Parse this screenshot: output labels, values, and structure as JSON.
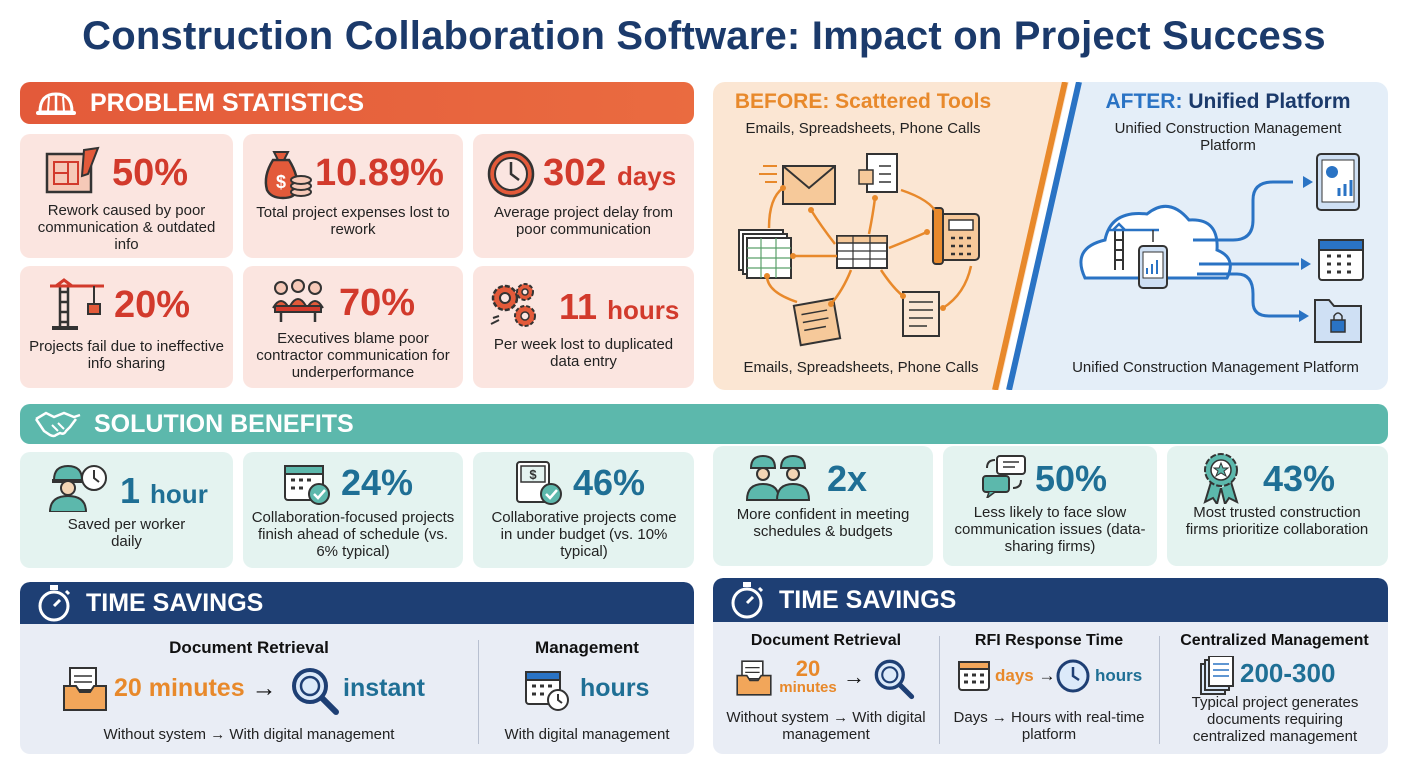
{
  "title": "Construction Collaboration Software: Impact on Project Success",
  "problem": {
    "heading": "PROBLEM STATISTICS",
    "stats": [
      {
        "value": "50%",
        "desc": "Rework caused by poor communication & outdated info",
        "icon": "blueprint-icon"
      },
      {
        "value": "10.89%",
        "desc": "Total project expenses lost to rework",
        "icon": "money-bag-icon"
      },
      {
        "value": "302",
        "unit": "days",
        "desc": "Average project delay from poor communication",
        "icon": "clock-icon"
      },
      {
        "value": "20%",
        "desc": "Projects fail due to ineffective info sharing",
        "icon": "crane-icon"
      },
      {
        "value": "70%",
        "desc": "Executives blame poor contractor communication for underperformance",
        "icon": "meeting-icon"
      },
      {
        "value": "11",
        "unit": "hours",
        "desc": "Per week lost to duplicated data entry",
        "icon": "gears-icon"
      }
    ]
  },
  "before_after": {
    "before_label": "BEFORE:",
    "before_title": "Scattered Tools",
    "before_sub": "Emails, Spreadsheets, Phone Calls",
    "before_footer": "Emails, Spreadsheets, Phone Calls",
    "after_label": "AFTER:",
    "after_title": "Unified Platform",
    "after_sub": "Unified Construction Management Platform",
    "after_footer": "Unified Construction Management Platform"
  },
  "benefits": {
    "heading": "SOLUTION BENEFITS",
    "items": [
      {
        "value": "1",
        "unit": "hour",
        "desc": "Saved per worker daily",
        "icon": "worker-clock-icon"
      },
      {
        "value": "24%",
        "desc": "Collaboration-focused projects finish ahead of schedule (vs. 6% typical)",
        "icon": "calendar-check-icon"
      },
      {
        "value": "46%",
        "desc": "Collaborative projects come in under budget (vs. 10% typical)",
        "icon": "budget-check-icon"
      },
      {
        "value": "2x",
        "desc": "More confident in meeting schedules & budgets",
        "icon": "workers-icon"
      },
      {
        "value": "50%",
        "desc": "Less likely to face slow communication issues (data-sharing firms)",
        "icon": "chat-bubbles-icon"
      },
      {
        "value": "43%",
        "desc": "Most trusted construction firms prioritize collaboration",
        "icon": "award-ribbon-icon"
      }
    ]
  },
  "time_left": {
    "heading": "TIME SAVINGS",
    "doc_title": "Document Retrieval",
    "doc_from": "20 minutes",
    "doc_arrow": "→",
    "doc_to": "instant",
    "doc_desc": "Without system → With digital management",
    "mgmt_title": "Management",
    "mgmt_value": "hours",
    "mgmt_desc": "With digital management"
  },
  "time_right": {
    "heading": "TIME SAVINGS",
    "doc_title": "Document Retrieval",
    "doc_from_num": "20",
    "doc_from_unit": "minutes",
    "doc_arrow": "→",
    "doc_desc": "Without system → With digital management",
    "rfi_title": "RFI Response Time",
    "rfi_from": "days",
    "rfi_arrow": "→",
    "rfi_to": "hours",
    "rfi_desc": "Days → Hours with real-time platform",
    "cm_title": "Centralized Management",
    "cm_value": "200-300",
    "cm_desc": "Typical project generates documents requiring centralized management"
  },
  "colors": {
    "red": "#d23a2c",
    "teal": "#5cb8ac",
    "navy": "#1e3f74",
    "orange": "#e8892b",
    "blue": "#1f6f95"
  }
}
